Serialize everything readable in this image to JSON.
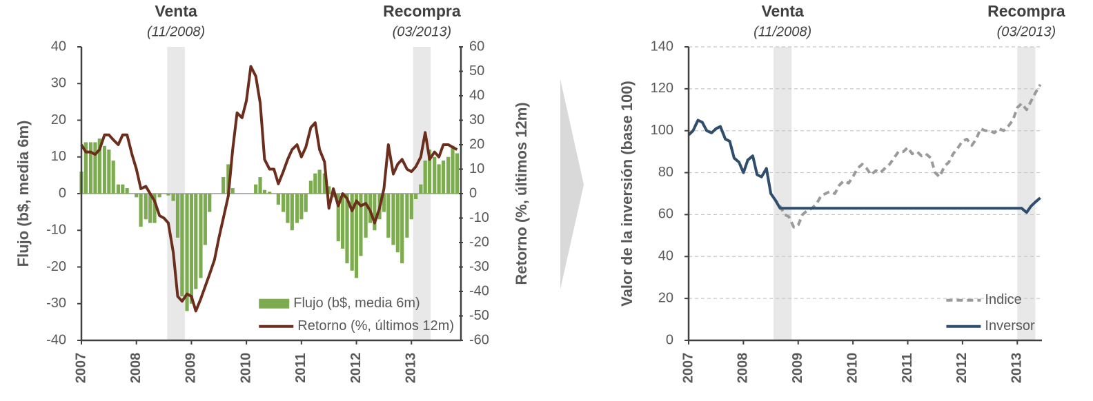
{
  "chart_data": [
    {
      "type": "combo",
      "ylabel": "Flujo (b$, media 6m)",
      "y2label": "Retorno (%, últimos 12m)",
      "x": [
        2007,
        2007.08,
        2007.17,
        2007.25,
        2007.33,
        2007.42,
        2007.5,
        2007.58,
        2007.67,
        2007.75,
        2007.83,
        2007.92,
        2008,
        2008.08,
        2008.17,
        2008.25,
        2008.33,
        2008.42,
        2008.5,
        2008.58,
        2008.67,
        2008.75,
        2008.83,
        2008.92,
        2009,
        2009.08,
        2009.17,
        2009.25,
        2009.33,
        2009.42,
        2009.5,
        2009.58,
        2009.67,
        2009.75,
        2009.83,
        2009.92,
        2010,
        2010.08,
        2010.17,
        2010.25,
        2010.33,
        2010.42,
        2010.5,
        2010.58,
        2010.67,
        2010.75,
        2010.83,
        2010.92,
        2011,
        2011.08,
        2011.17,
        2011.25,
        2011.33,
        2011.42,
        2011.5,
        2011.58,
        2011.67,
        2011.75,
        2011.83,
        2011.92,
        2012,
        2012.08,
        2012.17,
        2012.25,
        2012.33,
        2012.42,
        2012.5,
        2012.58,
        2012.67,
        2012.75,
        2012.83,
        2012.92,
        2013,
        2013.08,
        2013.17,
        2013.25,
        2013.33,
        2013.42,
        2013.5,
        2013.58,
        2013.67,
        2013.75,
        2013.83
      ],
      "xlim": [
        2007,
        2013.9
      ],
      "xticks": [
        2007,
        2008,
        2009,
        2010,
        2011,
        2012,
        2013
      ],
      "ylim": [
        -40,
        40
      ],
      "yticks": [
        -40,
        -30,
        -20,
        -10,
        0,
        10,
        20,
        30,
        40
      ],
      "y2lim": [
        -60,
        60
      ],
      "y2ticks": [
        -60,
        -50,
        -40,
        -30,
        -20,
        -10,
        0,
        10,
        20,
        30,
        40,
        50,
        60
      ],
      "grid": false,
      "legend": "lower right",
      "highlights": [
        {
          "label": "Venta",
          "date": "(11/2008)",
          "start": 2008.56,
          "end": 2008.88
        },
        {
          "label": "Recompra",
          "date": "(03/2013)",
          "start": 2013.03,
          "end": 2013.35
        }
      ],
      "series": [
        {
          "name": "Flujo (b$, media 6m)",
          "type": "bar",
          "color": "#7dab4f",
          "values": [
            6,
            14,
            14,
            14,
            15,
            13,
            12,
            9,
            2.5,
            2.5,
            1.5,
            0,
            -1,
            -9,
            -7,
            -8,
            -8,
            -1,
            0,
            -0.5,
            -2,
            -12,
            -28,
            -32,
            -30,
            -26,
            -23,
            -14,
            -5,
            0,
            0,
            4.5,
            8,
            1.5,
            0,
            0,
            0,
            0,
            2.5,
            4.5,
            1,
            0.5,
            0,
            -3,
            -5,
            -8,
            -10,
            -8,
            -7,
            -5,
            3.5,
            5.5,
            6.5,
            5.5,
            2,
            -1,
            -13,
            -15,
            -19,
            -21,
            -23,
            -17,
            -12,
            -8,
            -10,
            -7,
            -5,
            -12,
            -14,
            -16,
            -19,
            -12,
            -7,
            -1.5,
            2.5,
            9,
            12,
            10,
            8,
            9,
            10,
            13,
            11
          ]
        },
        {
          "name": "Retorno (%, últimos 12m)",
          "type": "line",
          "axis": "y2",
          "color": "#6b2d1c",
          "values": [
            20,
            17,
            17,
            16,
            18,
            24,
            24,
            22,
            20,
            24,
            24,
            16,
            10,
            2,
            3,
            0,
            -3,
            -9,
            -10,
            -12,
            -24,
            -42,
            -44,
            -41,
            -42,
            -48,
            -43,
            -38,
            -33,
            -27,
            -18,
            -10,
            -1,
            18,
            33,
            31,
            38,
            52,
            48,
            37,
            14,
            10,
            10,
            4,
            9,
            14,
            18,
            20,
            15,
            19,
            27,
            29,
            18,
            13,
            -6,
            2,
            -5,
            0,
            -2,
            -7,
            -3,
            -5,
            -4,
            -7,
            -12,
            -6,
            2,
            20,
            8,
            12,
            14,
            10,
            9,
            11,
            15,
            25,
            14,
            17,
            15,
            20,
            20,
            19,
            18
          ]
        }
      ]
    },
    {
      "type": "line",
      "ylabel": "Valor de la inversión (base 100)",
      "x": [
        2007,
        2007.08,
        2007.17,
        2007.25,
        2007.33,
        2007.42,
        2007.5,
        2007.58,
        2007.67,
        2007.75,
        2007.83,
        2007.92,
        2008,
        2008.08,
        2008.17,
        2008.25,
        2008.33,
        2008.42,
        2008.5,
        2008.58,
        2008.67,
        2008.75,
        2008.83,
        2008.92,
        2009,
        2009.08,
        2009.17,
        2009.25,
        2009.33,
        2009.42,
        2009.5,
        2009.58,
        2009.67,
        2009.75,
        2009.83,
        2009.92,
        2010,
        2010.08,
        2010.17,
        2010.25,
        2010.33,
        2010.42,
        2010.5,
        2010.58,
        2010.67,
        2010.75,
        2010.83,
        2010.92,
        2011,
        2011.08,
        2011.17,
        2011.25,
        2011.33,
        2011.42,
        2011.5,
        2011.58,
        2011.67,
        2011.75,
        2011.83,
        2011.92,
        2012,
        2012.08,
        2012.17,
        2012.25,
        2012.33,
        2012.42,
        2012.5,
        2012.58,
        2012.67,
        2012.75,
        2012.83,
        2012.92,
        2013,
        2013.08,
        2013.17,
        2013.25,
        2013.33,
        2013.42
      ],
      "xlim": [
        2007,
        2013.45
      ],
      "xticks": [
        2007,
        2008,
        2009,
        2010,
        2011,
        2012,
        2013
      ],
      "ylim": [
        0,
        140
      ],
      "yticks": [
        0,
        20,
        40,
        60,
        80,
        100,
        120,
        140
      ],
      "grid": true,
      "legend": "lower right",
      "highlights": [
        {
          "label": "Venta",
          "date": "(11/2008)",
          "start": 2008.55,
          "end": 2008.88
        },
        {
          "label": "Recompra",
          "date": "(03/2013)",
          "start": 2013.0,
          "end": 2013.33
        }
      ],
      "series": [
        {
          "name": "Indice",
          "type": "line",
          "line_style": "dashed",
          "color": "#9a9a9a",
          "values": [
            98,
            100,
            105,
            104,
            100,
            99,
            101,
            102,
            96,
            95,
            87,
            85,
            80,
            86,
            88,
            79,
            78,
            82,
            70,
            67,
            64,
            60,
            59,
            54,
            55,
            60,
            62,
            63,
            65,
            69,
            70,
            71,
            70,
            74,
            76,
            75,
            78,
            82,
            84,
            82,
            79,
            81,
            80,
            82,
            84,
            87,
            90,
            90,
            92,
            89,
            90,
            88,
            89,
            87,
            80,
            78,
            83,
            85,
            89,
            92,
            95,
            96,
            93,
            96,
            101,
            100,
            100,
            99,
            101,
            100,
            102,
            105,
            111,
            113,
            110,
            114,
            118,
            122
          ]
        },
        {
          "name": "Inversor",
          "type": "line",
          "line_style": "solid",
          "color": "#2f4e6e",
          "values": [
            98,
            100,
            105,
            104,
            100,
            99,
            101,
            102,
            96,
            95,
            87,
            85,
            80,
            86,
            88,
            79,
            78,
            82,
            70,
            67,
            63,
            63,
            63,
            63,
            63,
            63,
            63,
            63,
            63,
            63,
            63,
            63,
            63,
            63,
            63,
            63,
            63,
            63,
            63,
            63,
            63,
            63,
            63,
            63,
            63,
            63,
            63,
            63,
            63,
            63,
            63,
            63,
            63,
            63,
            63,
            63,
            63,
            63,
            63,
            63,
            63,
            63,
            63,
            63,
            63,
            63,
            63,
            63,
            63,
            63,
            63,
            63,
            63,
            63,
            61,
            64,
            66,
            68
          ]
        }
      ]
    }
  ]
}
